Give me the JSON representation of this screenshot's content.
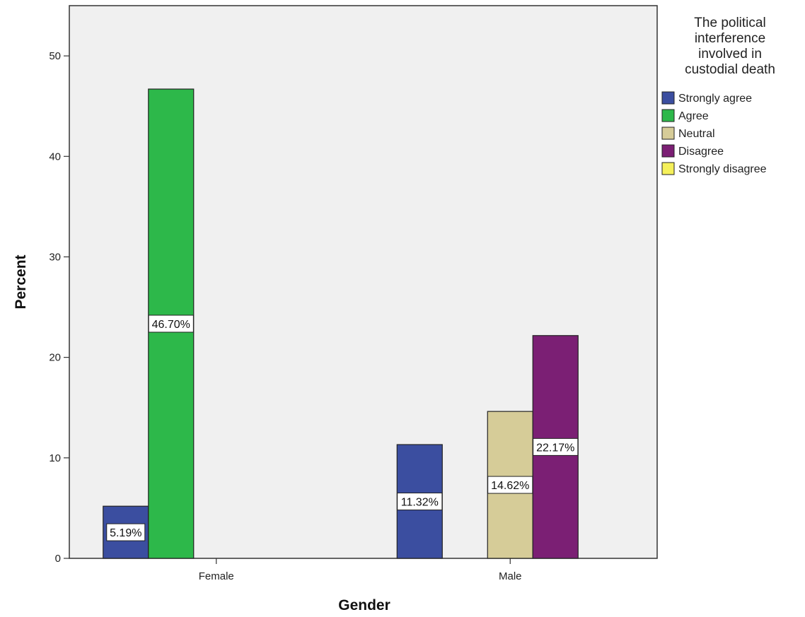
{
  "chart_data": {
    "type": "bar",
    "xlabel": "Gender",
    "ylabel": "Percent",
    "categories": [
      "Female",
      "Male"
    ],
    "ylim": [
      0,
      55
    ],
    "yticks": [
      0,
      10,
      20,
      30,
      40,
      50
    ],
    "grid": false,
    "legend": {
      "title": "The political interference involved in custodial death",
      "title_lines": [
        "The political",
        "interference",
        "involved in",
        "custodial death"
      ],
      "placement": "right"
    },
    "series": [
      {
        "name": "Strongly agree",
        "color": "#3b4ea0",
        "values": [
          5.19,
          11.32
        ],
        "labels": [
          "5.19%",
          "11.32%"
        ]
      },
      {
        "name": "Agree",
        "color": "#2db84a",
        "values": [
          46.7,
          null
        ],
        "labels": [
          "46.70%",
          ""
        ]
      },
      {
        "name": "Neutral",
        "color": "#d6cc98",
        "values": [
          null,
          14.62
        ],
        "labels": [
          "",
          "14.62%"
        ]
      },
      {
        "name": "Disagree",
        "color": "#7b1f74",
        "values": [
          null,
          22.17
        ],
        "labels": [
          "",
          "22.17%"
        ]
      },
      {
        "name": "Strongly disagree",
        "color": "#f5f05a",
        "values": [
          null,
          null
        ],
        "labels": [
          "",
          ""
        ]
      }
    ]
  }
}
